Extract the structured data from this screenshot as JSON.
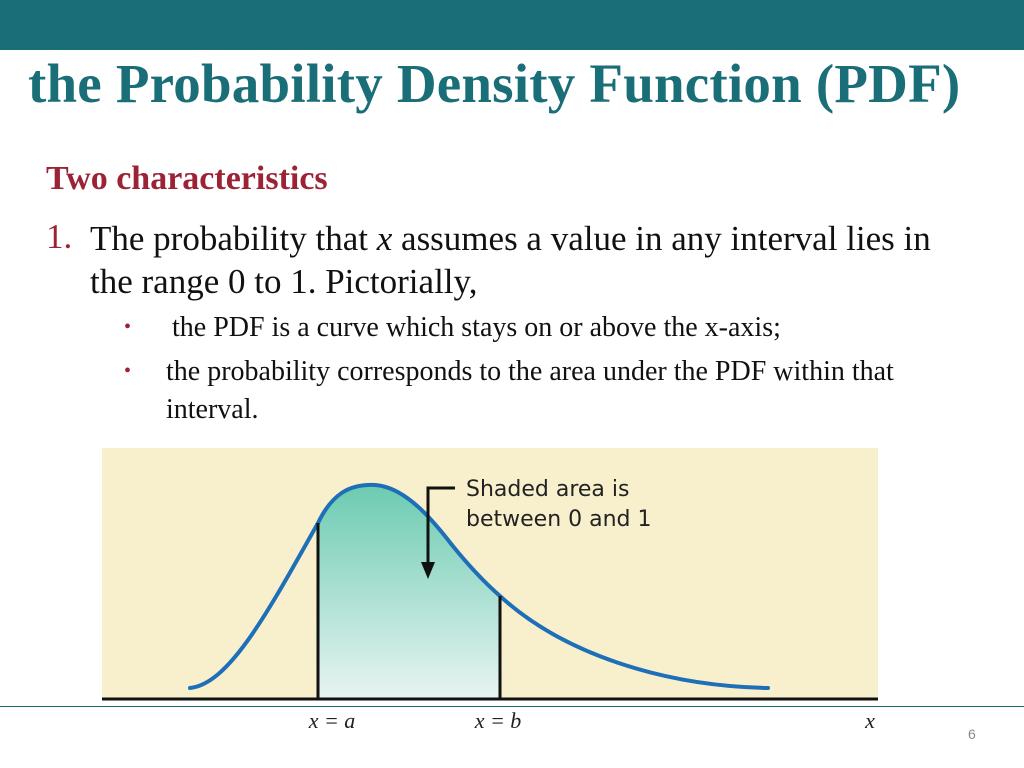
{
  "slide": {
    "title": "the Probability Density Function (PDF)",
    "subheading": "Two characteristics",
    "point_number": "1.",
    "point_text_before": "The probability that ",
    "point_variable": "x",
    "point_text_after": " assumes a value in any interval lies in the range 0 to 1. Pictorially,",
    "bullets": [
      "the PDF is a curve which stays on or above the x-axis;",
      "the probability corresponds to the area under the PDF within that interval."
    ],
    "page_number": "6"
  },
  "figure": {
    "annotation_line1": "Shaded area is",
    "annotation_line2": "between 0 and 1",
    "label_a": "x = a",
    "label_b": "x = b",
    "label_x": "x",
    "colors": {
      "panel_background": "#f8f0cc",
      "curve": "#1f6fb8",
      "shade_top": "#6ccbb1",
      "shade_bottom": "#e8f4f2",
      "axis": "#111111"
    }
  }
}
